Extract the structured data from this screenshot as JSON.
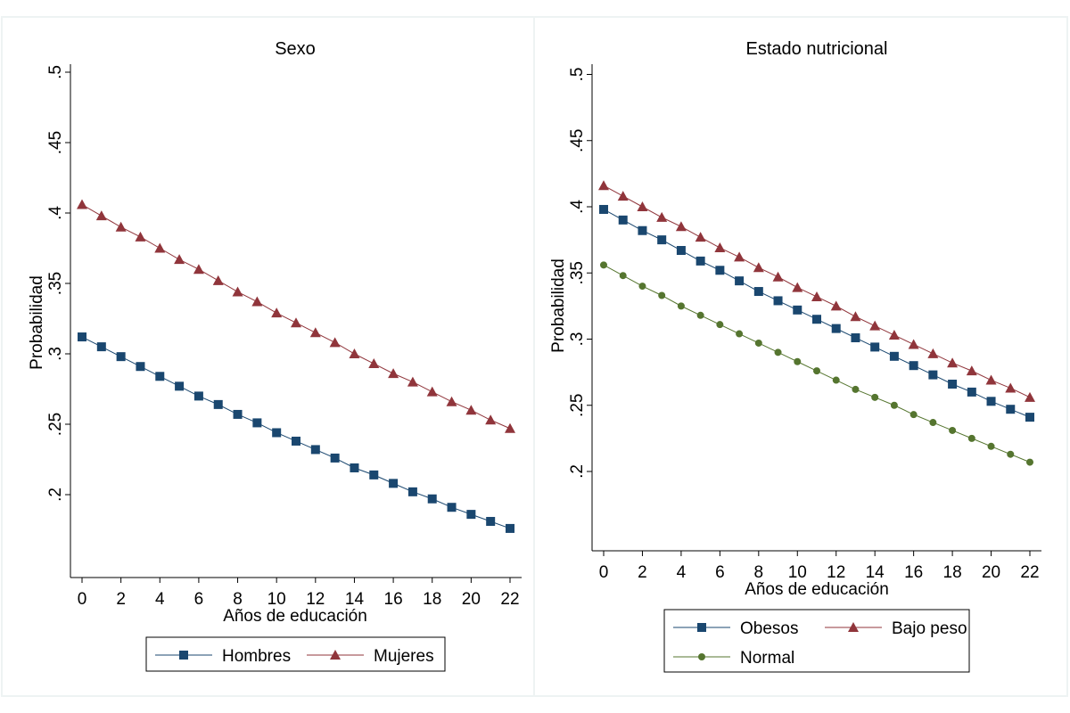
{
  "chart_data": [
    {
      "type": "line",
      "title": "Sexo",
      "xlabel": "Años de educación",
      "ylabel": "Probabilidad",
      "xlim": [
        0,
        22
      ],
      "ylim": [
        0.15,
        0.5
      ],
      "x_ticks": [
        0,
        2,
        4,
        6,
        8,
        10,
        12,
        14,
        16,
        18,
        20,
        22
      ],
      "y_ticks": [
        0.2,
        0.25,
        0.3,
        0.35,
        0.4,
        0.45,
        0.5
      ],
      "y_tick_labels": [
        ".2",
        ".25",
        ".3",
        ".35",
        ".4",
        ".45",
        ".5"
      ],
      "x": [
        0,
        1,
        2,
        3,
        4,
        5,
        6,
        7,
        8,
        9,
        10,
        11,
        12,
        13,
        14,
        15,
        16,
        17,
        18,
        19,
        20,
        21,
        22
      ],
      "grid": false,
      "legend_position": "bottom",
      "series": [
        {
          "name": "Hombres",
          "marker": "square",
          "color": "#1a476f",
          "values": [
            0.312,
            0.305,
            0.298,
            0.291,
            0.284,
            0.277,
            0.27,
            0.264,
            0.257,
            0.251,
            0.244,
            0.238,
            0.232,
            0.226,
            0.219,
            0.214,
            0.208,
            0.202,
            0.197,
            0.191,
            0.186,
            0.181,
            0.176
          ]
        },
        {
          "name": "Mujeres",
          "marker": "triangle",
          "color": "#90353b",
          "values": [
            0.406,
            0.398,
            0.39,
            0.383,
            0.375,
            0.367,
            0.36,
            0.352,
            0.344,
            0.337,
            0.329,
            0.322,
            0.315,
            0.308,
            0.3,
            0.293,
            0.286,
            0.28,
            0.273,
            0.266,
            0.26,
            0.253,
            0.247
          ]
        }
      ]
    },
    {
      "type": "line",
      "title": "Estado nutricional",
      "xlabel": "Años de educación",
      "ylabel": "Probabilidad",
      "xlim": [
        0,
        22
      ],
      "ylim": [
        0.165,
        0.5
      ],
      "x_ticks": [
        0,
        2,
        4,
        6,
        8,
        10,
        12,
        14,
        16,
        18,
        20,
        22
      ],
      "y_ticks": [
        0.2,
        0.25,
        0.3,
        0.35,
        0.4,
        0.45,
        0.5
      ],
      "y_tick_labels": [
        ".2",
        ".25",
        ".3",
        ".35",
        ".4",
        ".45",
        ".5"
      ],
      "x": [
        0,
        1,
        2,
        3,
        4,
        5,
        6,
        7,
        8,
        9,
        10,
        11,
        12,
        13,
        14,
        15,
        16,
        17,
        18,
        19,
        20,
        21,
        22
      ],
      "grid": false,
      "legend_position": "bottom",
      "series": [
        {
          "name": "Obesos",
          "marker": "square",
          "color": "#1a476f",
          "values": [
            0.398,
            0.39,
            0.382,
            0.375,
            0.367,
            0.359,
            0.352,
            0.344,
            0.336,
            0.329,
            0.322,
            0.315,
            0.308,
            0.301,
            0.294,
            0.287,
            0.28,
            0.273,
            0.266,
            0.26,
            0.253,
            0.247,
            0.241
          ]
        },
        {
          "name": "Bajo peso",
          "marker": "triangle",
          "color": "#90353b",
          "values": [
            0.416,
            0.408,
            0.4,
            0.392,
            0.385,
            0.377,
            0.369,
            0.362,
            0.354,
            0.347,
            0.339,
            0.332,
            0.325,
            0.317,
            0.31,
            0.303,
            0.296,
            0.289,
            0.282,
            0.276,
            0.269,
            0.263,
            0.256
          ]
        },
        {
          "name": "Normal",
          "marker": "circle",
          "color": "#55752f",
          "values": [
            0.356,
            0.348,
            0.34,
            0.333,
            0.325,
            0.318,
            0.311,
            0.304,
            0.297,
            0.29,
            0.283,
            0.276,
            0.269,
            0.262,
            0.256,
            0.25,
            0.243,
            0.237,
            0.231,
            0.225,
            0.219,
            0.213,
            0.207
          ]
        }
      ]
    }
  ]
}
